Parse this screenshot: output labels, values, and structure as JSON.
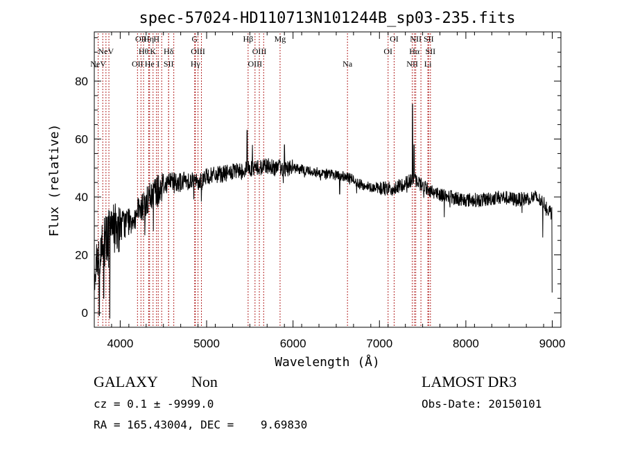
{
  "chart_data": {
    "type": "line",
    "title": "spec-57024-HD110713N101244B_sp03-235.fits",
    "xlabel": "Wavelength (Å)",
    "ylabel": "Flux (relative)",
    "xlim": [
      3700,
      9100
    ],
    "ylim": [
      -5,
      97
    ],
    "x_ticks": [
      4000,
      5000,
      6000,
      7000,
      8000,
      9000
    ],
    "y_ticks": [
      0,
      20,
      40,
      60,
      80
    ],
    "x_tick_labels": [
      "4000",
      "5000",
      "6000",
      "7000",
      "8000",
      "9000"
    ],
    "y_tick_labels": [
      "0",
      "20",
      "40",
      "60",
      "80"
    ],
    "line_color": "#000000",
    "marker_color": "#b22222",
    "spectrum_anchors": {
      "x": [
        3700,
        3800,
        3900,
        4000,
        4100,
        4200,
        4300,
        4400,
        4500,
        4600,
        4700,
        4800,
        4900,
        5000,
        5200,
        5400,
        5500,
        5600,
        5700,
        5800,
        6000,
        6200,
        6400,
        6600,
        6700,
        6800,
        7000,
        7200,
        7300,
        7400,
        7500,
        7600,
        7700,
        7800,
        8000,
        8200,
        8400,
        8600,
        8800,
        8900,
        9000
      ],
      "y": [
        15,
        24,
        29,
        30,
        32,
        34,
        38,
        42,
        44,
        46,
        45,
        46,
        45,
        47,
        48,
        49,
        50,
        50,
        51,
        50,
        50,
        49,
        48,
        47,
        46,
        44,
        43,
        43,
        45,
        46,
        44,
        42,
        41,
        40,
        39,
        39,
        40,
        39,
        40,
        38,
        34
      ]
    },
    "spectrum_features": [
      {
        "x": 5468,
        "y": 63
      },
      {
        "x": 5530,
        "y": 58
      },
      {
        "x": 5900,
        "y": 58
      },
      {
        "x": 7383,
        "y": 72
      },
      {
        "x": 7400,
        "y": 58
      },
      {
        "x": 3758,
        "y": -1
      },
      {
        "x": 3880,
        "y": -2
      },
      {
        "x": 3810,
        "y": 5
      },
      {
        "x": 6540,
        "y": 41
      },
      {
        "x": 7750,
        "y": 33
      },
      {
        "x": 8890,
        "y": 26
      },
      {
        "x": 9000,
        "y": 7
      }
    ],
    "lines": [
      {
        "x": 3745,
        "labels": [
          "NeV"
        ],
        "row": 2
      },
      {
        "x": 3798,
        "labels": [],
        "row": 2
      },
      {
        "x": 3835,
        "labels": [
          "NeV"
        ],
        "row": 1
      },
      {
        "x": 3869,
        "labels": [],
        "row": 1
      },
      {
        "x": 4200,
        "labels": [
          "OII"
        ],
        "row": 2
      },
      {
        "x": 4240,
        "labels": [
          "OII"
        ],
        "row": 0
      },
      {
        "x": 4270,
        "labels": [
          "Hθ"
        ],
        "row": 1
      },
      {
        "x": 4330,
        "labels": [
          "Hη"
        ],
        "row": 0
      },
      {
        "x": 4340,
        "labels": [
          "He"
        ],
        "row": 2
      },
      {
        "x": 4380,
        "labels": [
          "K"
        ],
        "row": 1
      },
      {
        "x": 4420,
        "labels": [
          "H"
        ],
        "row": 0
      },
      {
        "x": 4440,
        "labels": [
          "I"
        ],
        "row": 2
      },
      {
        "x": 4480,
        "labels": [],
        "row": 2
      },
      {
        "x": 4560,
        "labels": [
          "Hδ"
        ],
        "row": 1
      },
      {
        "x": 4560,
        "labels": [
          "SII"
        ],
        "row": 2
      },
      {
        "x": 4620,
        "labels": [],
        "row": 2
      },
      {
        "x": 4862,
        "labels": [
          "G"
        ],
        "row": 0
      },
      {
        "x": 4870,
        "labels": [
          "Hγ"
        ],
        "row": 2
      },
      {
        "x": 4900,
        "labels": [
          "OIII"
        ],
        "row": 1
      },
      {
        "x": 4940,
        "labels": [],
        "row": 1
      },
      {
        "x": 5480,
        "labels": [
          "Hβ"
        ],
        "row": 0
      },
      {
        "x": 5610,
        "labels": [
          "OIII"
        ],
        "row": 1
      },
      {
        "x": 5560,
        "labels": [
          "OIII"
        ],
        "row": 2
      },
      {
        "x": 5660,
        "labels": [],
        "row": 1
      },
      {
        "x": 5850,
        "labels": [
          "Mg"
        ],
        "row": 0
      },
      {
        "x": 6630,
        "labels": [
          "Na"
        ],
        "row": 2
      },
      {
        "x": 7100,
        "labels": [
          "OI"
        ],
        "row": 1
      },
      {
        "x": 7170,
        "labels": [
          "OI"
        ],
        "row": 0
      },
      {
        "x": 7380,
        "labels": [
          "NII"
        ],
        "row": 2
      },
      {
        "x": 7405,
        "labels": [
          "Hα"
        ],
        "row": 1
      },
      {
        "x": 7420,
        "labels": [
          "NII"
        ],
        "row": 0
      },
      {
        "x": 7480,
        "labels": [],
        "row": 0
      },
      {
        "x": 7570,
        "labels": [
          "SII"
        ],
        "row": 0
      },
      {
        "x": 7590,
        "labels": [
          "SII"
        ],
        "row": 1
      },
      {
        "x": 7560,
        "labels": [
          "Li"
        ],
        "row": 2
      }
    ]
  },
  "info": {
    "object_class": "GALAXY",
    "subclass": "Non",
    "survey": "LAMOST DR3",
    "cz_line": "cz = 0.1 ± -9999.0",
    "obs_date_line": "Obs-Date: 20150101",
    "coords_line": "RA = 165.43004, DEC =    9.69830"
  }
}
